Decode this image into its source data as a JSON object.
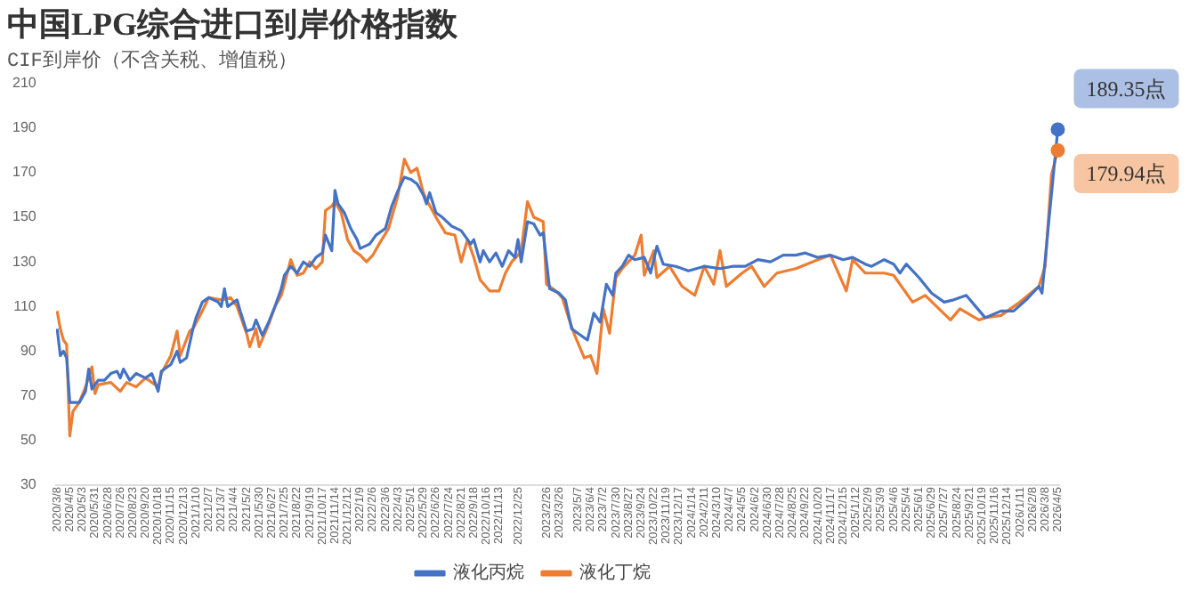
{
  "chart_data": {
    "type": "line",
    "title": "中国LPG综合进口到岸价格指数",
    "subtitle": "CIF到岸价（不含关税、增值税）",
    "xlim": [
      "2020-03-05",
      "2026-04-08"
    ],
    "ylim": [
      30,
      210
    ],
    "yticks": [
      30,
      50,
      70,
      90,
      110,
      130,
      150,
      170,
      190,
      210
    ],
    "xticks": [
      {
        "value": "2020-03-08",
        "label": "2020/3/8"
      },
      {
        "value": "2020-04-05",
        "label": "2020/4/5"
      },
      {
        "value": "2020-05-03",
        "label": "2020/5/3"
      },
      {
        "value": "2020-05-31",
        "label": "2020/5/31"
      },
      {
        "value": "2020-06-28",
        "label": "2020/6/28"
      },
      {
        "value": "2020-07-26",
        "label": "2020/7/26"
      },
      {
        "value": "2020-08-23",
        "label": "2020/8/23"
      },
      {
        "value": "2020-09-20",
        "label": "2020/9/20"
      },
      {
        "value": "2020-10-18",
        "label": "2020/10/18"
      },
      {
        "value": "2020-11-15",
        "label": "2020/11/15"
      },
      {
        "value": "2020-12-13",
        "label": "2020/12/13"
      },
      {
        "value": "2021-01-10",
        "label": "2021/1/10"
      },
      {
        "value": "2021-02-07",
        "label": "2021/2/7"
      },
      {
        "value": "2021-03-07",
        "label": "2021/3/7"
      },
      {
        "value": "2021-04-04",
        "label": "2021/4/4"
      },
      {
        "value": "2021-05-02",
        "label": "2021/5/2"
      },
      {
        "value": "2021-05-30",
        "label": "2021/5/30"
      },
      {
        "value": "2021-06-27",
        "label": "2021/6/27"
      },
      {
        "value": "2021-07-25",
        "label": "2021/7/25"
      },
      {
        "value": "2021-08-22",
        "label": "2021/8/22"
      },
      {
        "value": "2021-09-19",
        "label": "2021/9/19"
      },
      {
        "value": "2021-10-17",
        "label": "2021/10/17"
      },
      {
        "value": "2021-11-14",
        "label": "2021/11/14"
      },
      {
        "value": "2021-12-12",
        "label": "2021/12/12"
      },
      {
        "value": "2022-01-09",
        "label": "2022/1/9"
      },
      {
        "value": "2022-02-06",
        "label": "2022/2/6"
      },
      {
        "value": "2022-03-06",
        "label": "2022/3/6"
      },
      {
        "value": "2022-04-03",
        "label": "2022/4/3"
      },
      {
        "value": "2022-05-01",
        "label": "2022/5/1"
      },
      {
        "value": "2022-05-29",
        "label": "2022/5/29"
      },
      {
        "value": "2022-06-26",
        "label": "2022/6/26"
      },
      {
        "value": "2022-07-24",
        "label": "2022/7/24"
      },
      {
        "value": "2022-08-21",
        "label": "2022/8/21"
      },
      {
        "value": "2022-09-18",
        "label": "2022/9/18"
      },
      {
        "value": "2022-10-16",
        "label": "2022/10/16"
      },
      {
        "value": "2022-11-13",
        "label": "2022/11/13"
      },
      {
        "value": "2022-12-25",
        "label": "2022/12/25"
      },
      {
        "value": "2023-02-26",
        "label": "2023/2/26"
      },
      {
        "value": "2023-03-26",
        "label": "2023/3/26"
      },
      {
        "value": "2023-05-07",
        "label": "2023/5/7"
      },
      {
        "value": "2023-06-04",
        "label": "2023/6/4"
      },
      {
        "value": "2023-07-02",
        "label": "2023/7/2"
      },
      {
        "value": "2023-07-30",
        "label": "2023/7/30"
      },
      {
        "value": "2023-08-27",
        "label": "2023/8/27"
      },
      {
        "value": "2023-09-24",
        "label": "2023/9/24"
      },
      {
        "value": "2023-10-22",
        "label": "2023/10/22"
      },
      {
        "value": "2023-11-19",
        "label": "2023/11/19"
      },
      {
        "value": "2023-12-17",
        "label": "2023/12/17"
      },
      {
        "value": "2024-01-14",
        "label": "2024/1/14"
      },
      {
        "value": "2024-02-11",
        "label": "2024/2/11"
      },
      {
        "value": "2024-03-10",
        "label": "2024/3/10"
      },
      {
        "value": "2024-04-07",
        "label": "2024/4/7"
      },
      {
        "value": "2024-05-05",
        "label": "2024/5/5"
      },
      {
        "value": "2024-06-02",
        "label": "2024/6/2"
      },
      {
        "value": "2024-06-30",
        "label": "2024/6/30"
      },
      {
        "value": "2024-07-28",
        "label": "2024/7/28"
      },
      {
        "value": "2024-08-25",
        "label": "2024/8/25"
      },
      {
        "value": "2024-09-22",
        "label": "2024/9/22"
      },
      {
        "value": "2024-10-20",
        "label": "2024/10/20"
      },
      {
        "value": "2024-11-17",
        "label": "2024/11/17"
      },
      {
        "value": "2024-12-15",
        "label": "2024/12/15"
      },
      {
        "value": "2025-01-12",
        "label": "2025/1/12"
      },
      {
        "value": "2025-02-09",
        "label": "2025/2/9"
      },
      {
        "value": "2025-03-09",
        "label": "2025/3/9"
      },
      {
        "value": "2025-04-06",
        "label": "2025/4/6"
      },
      {
        "value": "2025-05-04",
        "label": "2025/5/4"
      },
      {
        "value": "2025-06-01",
        "label": "2025/6/1"
      },
      {
        "value": "2025-06-29",
        "label": "2025/6/29"
      },
      {
        "value": "2025-07-27",
        "label": "2025/7/27"
      },
      {
        "value": "2025-08-24",
        "label": "2025/8/24"
      },
      {
        "value": "2025-09-21",
        "label": "2025/9/21"
      },
      {
        "value": "2025-10-19",
        "label": "2025/10/19"
      },
      {
        "value": "2025-11-16",
        "label": "2025/11/16"
      },
      {
        "value": "2025-12-14",
        "label": "2025/12/14"
      },
      {
        "value": "2026-01-11",
        "label": "2026/1/11"
      },
      {
        "value": "2026-02-08",
        "label": "2026/2/8"
      },
      {
        "value": "2026-03-08",
        "label": "2026/3/8"
      },
      {
        "value": "2026-04-05",
        "label": "2026/4/5"
      }
    ],
    "legend": "bottom",
    "grid": false,
    "series": [
      {
        "name": "液化丙烷",
        "color": "#4472c4",
        "x": [
          "2020-03-08",
          "2020-03-15",
          "2020-03-22",
          "2020-03-29",
          "2020-04-05",
          "2020-04-26",
          "2020-05-10",
          "2020-05-17",
          "2020-05-24",
          "2020-06-07",
          "2020-06-21",
          "2020-07-05",
          "2020-07-19",
          "2020-07-26",
          "2020-08-02",
          "2020-08-16",
          "2020-08-30",
          "2020-09-20",
          "2020-10-04",
          "2020-10-18",
          "2020-10-25",
          "2020-11-15",
          "2020-11-29",
          "2020-12-06",
          "2020-12-20",
          "2021-01-03",
          "2021-01-10",
          "2021-01-24",
          "2021-02-07",
          "2021-02-28",
          "2021-03-07",
          "2021-03-14",
          "2021-03-21",
          "2021-04-11",
          "2021-04-18",
          "2021-05-02",
          "2021-05-16",
          "2021-05-23",
          "2021-06-06",
          "2021-06-20",
          "2021-07-04",
          "2021-07-18",
          "2021-07-25",
          "2021-08-08",
          "2021-08-22",
          "2021-09-05",
          "2021-09-19",
          "2021-10-03",
          "2021-10-17",
          "2021-10-24",
          "2021-11-07",
          "2021-11-14",
          "2021-11-21",
          "2021-12-05",
          "2021-12-19",
          "2022-01-02",
          "2022-01-09",
          "2022-01-30",
          "2022-02-13",
          "2022-03-06",
          "2022-03-20",
          "2022-04-03",
          "2022-04-17",
          "2022-05-01",
          "2022-05-15",
          "2022-05-29",
          "2022-06-05",
          "2022-06-12",
          "2022-06-26",
          "2022-07-10",
          "2022-07-31",
          "2022-08-21",
          "2022-09-11",
          "2022-09-18",
          "2022-10-02",
          "2022-10-09",
          "2022-10-23",
          "2022-11-06",
          "2022-11-20",
          "2022-12-04",
          "2022-12-18",
          "2022-12-25",
          "2023-01-01",
          "2023-01-15",
          "2023-01-29",
          "2023-02-12",
          "2023-02-19",
          "2023-03-05",
          "2023-03-26",
          "2023-04-09",
          "2023-04-23",
          "2023-05-07",
          "2023-05-28",
          "2023-06-11",
          "2023-06-25",
          "2023-07-09",
          "2023-07-23",
          "2023-07-30",
          "2023-08-13",
          "2023-08-27",
          "2023-09-10",
          "2023-10-01",
          "2023-10-15",
          "2023-10-29",
          "2023-11-12",
          "2023-12-10",
          "2024-01-07",
          "2024-02-11",
          "2024-03-17",
          "2024-04-14",
          "2024-05-12",
          "2024-06-09",
          "2024-07-07",
          "2024-08-04",
          "2024-09-01",
          "2024-09-22",
          "2024-10-20",
          "2024-11-17",
          "2024-12-15",
          "2025-01-05",
          "2025-02-02",
          "2025-02-16",
          "2025-03-16",
          "2025-04-06",
          "2025-04-20",
          "2025-05-04",
          "2025-06-01",
          "2025-06-29",
          "2025-07-27",
          "2025-08-17",
          "2025-09-14",
          "2025-10-05",
          "2025-10-26",
          "2025-11-30",
          "2025-12-28",
          "2026-01-25",
          "2026-02-22",
          "2026-03-01",
          "2026-03-15",
          "2026-04-05"
        ],
        "values": [
          100,
          88,
          90,
          87,
          67,
          67,
          72,
          82,
          73,
          77,
          77,
          80,
          81,
          78,
          82,
          77,
          80,
          78,
          80,
          72,
          81,
          84,
          90,
          85,
          87,
          100,
          105,
          112,
          114,
          112,
          110,
          118,
          110,
          113,
          108,
          99,
          100,
          104,
          97,
          103,
          110,
          118,
          124,
          128,
          125,
          130,
          128,
          132,
          134,
          142,
          135,
          162,
          156,
          152,
          145,
          140,
          136,
          138,
          142,
          145,
          155,
          162,
          168,
          167,
          165,
          160,
          156,
          161,
          152,
          150,
          146,
          144,
          138,
          140,
          130,
          135,
          130,
          134,
          128,
          135,
          132,
          140,
          130,
          148,
          147,
          142,
          143,
          118,
          116,
          113,
          100,
          98,
          95,
          107,
          103,
          120,
          115,
          125,
          128,
          133,
          131,
          132,
          125,
          137,
          129,
          128,
          126,
          128,
          127,
          128,
          128,
          131,
          130,
          133,
          133,
          134,
          132,
          133,
          131,
          132,
          129,
          128,
          131,
          129,
          125,
          129,
          123,
          116,
          112,
          113,
          115,
          110,
          105,
          108,
          108,
          113,
          119,
          116,
          146,
          189.35
        ],
        "value_labels": [
          null,
          null,
          null,
          null,
          null,
          null,
          null,
          null,
          null,
          null,
          null,
          null,
          null,
          null,
          null,
          null,
          null,
          null,
          null,
          null,
          null,
          null,
          null,
          null,
          null,
          null,
          null,
          null,
          null,
          null,
          null,
          null,
          null,
          null,
          null,
          null,
          null,
          null,
          null,
          null,
          null,
          null,
          null,
          null,
          null,
          null,
          null,
          null,
          null,
          null,
          null,
          null,
          null,
          null,
          null,
          null,
          null,
          null,
          null,
          null,
          null,
          null,
          null,
          null,
          null,
          null,
          null,
          null,
          null,
          null,
          null,
          null,
          null,
          null,
          null,
          null,
          null,
          null,
          null,
          null,
          null,
          null,
          null,
          null,
          null,
          null,
          null,
          null,
          null,
          null,
          null,
          null,
          null,
          null,
          null,
          null,
          null,
          null,
          null,
          null,
          null,
          null,
          null,
          null,
          null,
          null,
          null,
          null,
          null,
          null,
          null,
          null,
          null,
          null,
          null,
          null,
          null,
          null,
          null,
          null,
          null,
          null,
          null,
          null,
          null,
          null,
          null,
          null,
          null,
          null,
          null,
          null,
          null,
          null,
          null,
          null,
          null,
          null,
          null,
          "189.35点"
        ]
      },
      {
        "name": "液化丁烷",
        "color": "#ed7d31",
        "x": [
          "2020-03-08",
          "2020-03-15",
          "2020-03-22",
          "2020-03-29",
          "2020-04-05",
          "2020-04-12",
          "2020-04-26",
          "2020-05-10",
          "2020-05-24",
          "2020-05-31",
          "2020-06-07",
          "2020-07-05",
          "2020-07-26",
          "2020-08-09",
          "2020-08-30",
          "2020-09-20",
          "2020-10-18",
          "2020-10-25",
          "2020-11-15",
          "2020-11-29",
          "2020-12-06",
          "2020-12-27",
          "2021-01-03",
          "2021-01-24",
          "2021-02-07",
          "2021-03-07",
          "2021-03-28",
          "2021-04-11",
          "2021-05-02",
          "2021-05-09",
          "2021-05-23",
          "2021-05-30",
          "2021-06-20",
          "2021-07-04",
          "2021-07-18",
          "2021-07-25",
          "2021-08-08",
          "2021-08-22",
          "2021-09-05",
          "2021-09-19",
          "2021-10-03",
          "2021-10-17",
          "2021-10-24",
          "2021-11-07",
          "2021-11-14",
          "2021-11-28",
          "2021-12-12",
          "2021-12-26",
          "2022-01-09",
          "2022-01-23",
          "2022-02-06",
          "2022-02-20",
          "2022-03-13",
          "2022-04-03",
          "2022-04-17",
          "2022-05-01",
          "2022-05-15",
          "2022-05-29",
          "2022-06-05",
          "2022-06-26",
          "2022-07-17",
          "2022-08-07",
          "2022-08-21",
          "2022-09-04",
          "2022-09-18",
          "2022-10-02",
          "2022-10-23",
          "2022-11-13",
          "2022-11-27",
          "2022-12-11",
          "2022-12-25",
          "2023-01-01",
          "2023-01-15",
          "2023-01-29",
          "2023-02-19",
          "2023-02-26",
          "2023-03-19",
          "2023-04-02",
          "2023-04-16",
          "2023-04-30",
          "2023-05-21",
          "2023-06-04",
          "2023-06-18",
          "2023-07-02",
          "2023-07-16",
          "2023-07-30",
          "2023-08-13",
          "2023-09-10",
          "2023-09-24",
          "2023-10-01",
          "2023-10-22",
          "2023-10-29",
          "2023-11-26",
          "2023-12-24",
          "2024-01-21",
          "2024-02-11",
          "2024-03-03",
          "2024-03-17",
          "2024-03-31",
          "2024-05-05",
          "2024-05-26",
          "2024-06-23",
          "2024-07-21",
          "2024-09-01",
          "2024-10-20",
          "2024-11-17",
          "2024-12-22",
          "2025-01-05",
          "2025-02-02",
          "2025-03-16",
          "2025-04-06",
          "2025-05-18",
          "2025-06-15",
          "2025-08-10",
          "2025-08-31",
          "2025-10-12",
          "2025-10-26",
          "2025-11-30",
          "2026-01-11",
          "2026-02-22",
          "2026-03-08",
          "2026-03-22",
          "2026-04-05"
        ],
        "values": [
          108,
          100,
          95,
          93,
          52,
          63,
          67,
          74,
          83,
          71,
          75,
          76,
          72,
          76,
          74,
          78,
          74,
          80,
          88,
          99,
          88,
          99,
          100,
          108,
          114,
          113,
          114,
          110,
          98,
          92,
          100,
          92,
          102,
          110,
          115,
          120,
          131,
          124,
          125,
          130,
          127,
          130,
          153,
          155,
          157,
          152,
          140,
          135,
          133,
          130,
          133,
          138,
          145,
          160,
          176,
          170,
          172,
          161,
          158,
          150,
          143,
          142,
          130,
          140,
          132,
          122,
          117,
          117,
          125,
          130,
          133,
          135,
          157,
          150,
          148,
          120,
          117,
          114,
          105,
          97,
          87,
          88,
          80,
          109,
          98,
          123,
          127,
          133,
          142,
          124,
          135,
          123,
          128,
          119,
          115,
          128,
          120,
          135,
          119,
          125,
          128,
          119,
          125,
          127,
          131,
          133,
          117,
          131,
          125,
          125,
          124,
          112,
          115,
          104,
          109,
          104,
          105,
          106,
          112,
          119,
          128,
          169,
          179.94
        ],
        "value_labels": [
          null,
          null,
          null,
          null,
          null,
          null,
          null,
          null,
          null,
          null,
          null,
          null,
          null,
          null,
          null,
          null,
          null,
          null,
          null,
          null,
          null,
          null,
          null,
          null,
          null,
          null,
          null,
          null,
          null,
          null,
          null,
          null,
          null,
          null,
          null,
          null,
          null,
          null,
          null,
          null,
          null,
          null,
          null,
          null,
          null,
          null,
          null,
          null,
          null,
          null,
          null,
          null,
          null,
          null,
          null,
          null,
          null,
          null,
          null,
          null,
          null,
          null,
          null,
          null,
          null,
          null,
          null,
          null,
          null,
          null,
          null,
          null,
          null,
          null,
          null,
          null,
          null,
          null,
          null,
          null,
          null,
          null,
          null,
          null,
          null,
          null,
          null,
          null,
          null,
          null,
          null,
          null,
          null,
          null,
          null,
          null,
          null,
          null,
          null,
          null,
          null,
          null,
          null,
          null,
          null,
          null,
          null,
          null,
          null,
          null,
          null,
          null,
          null,
          null,
          null,
          null,
          null,
          null,
          null,
          null,
          null,
          null,
          "179.94点"
        ]
      }
    ]
  }
}
